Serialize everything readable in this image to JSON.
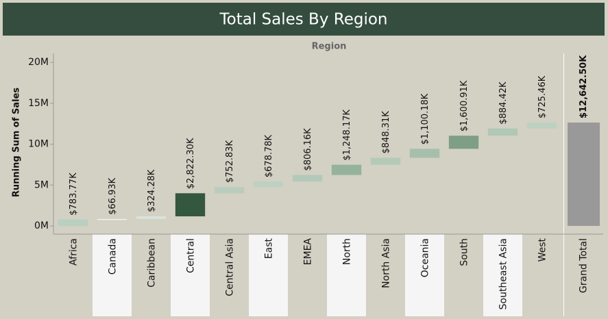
{
  "chart_data": {
    "type": "waterfall",
    "title": "Total Sales By Region",
    "header": "Region",
    "y_label": "Running Sum of Sales",
    "categories": [
      "Africa",
      "Canada",
      "Caribbean",
      "Central",
      "Central Asia",
      "East",
      "EMEA",
      "North",
      "North Asia",
      "Oceania",
      "South",
      "Southeast Asia",
      "West"
    ],
    "values": [
      783770,
      66930,
      324280,
      2822300,
      752830,
      678780,
      806160,
      1248170,
      848310,
      1100180,
      1600910,
      884420,
      725460
    ],
    "value_labels": [
      "$783.77K",
      "$66.93K",
      "$324.28K",
      "$2,822.30K",
      "$752.83K",
      "$678.78K",
      "$806.16K",
      "$1,248.17K",
      "$848.31K",
      "$1,100.18K",
      "$1,600.91K",
      "$884.42K",
      "$725.46K"
    ],
    "colors": [
      "#b9cfc0",
      "#eef2ef",
      "#d9e3dc",
      "#34573f",
      "#b8cdbd",
      "#bcd1c2",
      "#b3c9b9",
      "#94b29c",
      "#b4cab9",
      "#a6bfac",
      "#7e9e86",
      "#b0c8b6",
      "#bcd1c2"
    ],
    "total": {
      "label": "Grand Total",
      "value": 12642500,
      "value_label": "$12,642.50K",
      "color": "#999999"
    },
    "ylim": [
      -1000000,
      21100000
    ],
    "yticks": [
      {
        "value": 0,
        "label": "0M"
      },
      {
        "value": 5000000,
        "label": "5M"
      },
      {
        "value": 10000000,
        "label": "10M"
      },
      {
        "value": 15000000,
        "label": "15M"
      },
      {
        "value": 20000000,
        "label": "20M"
      }
    ]
  }
}
